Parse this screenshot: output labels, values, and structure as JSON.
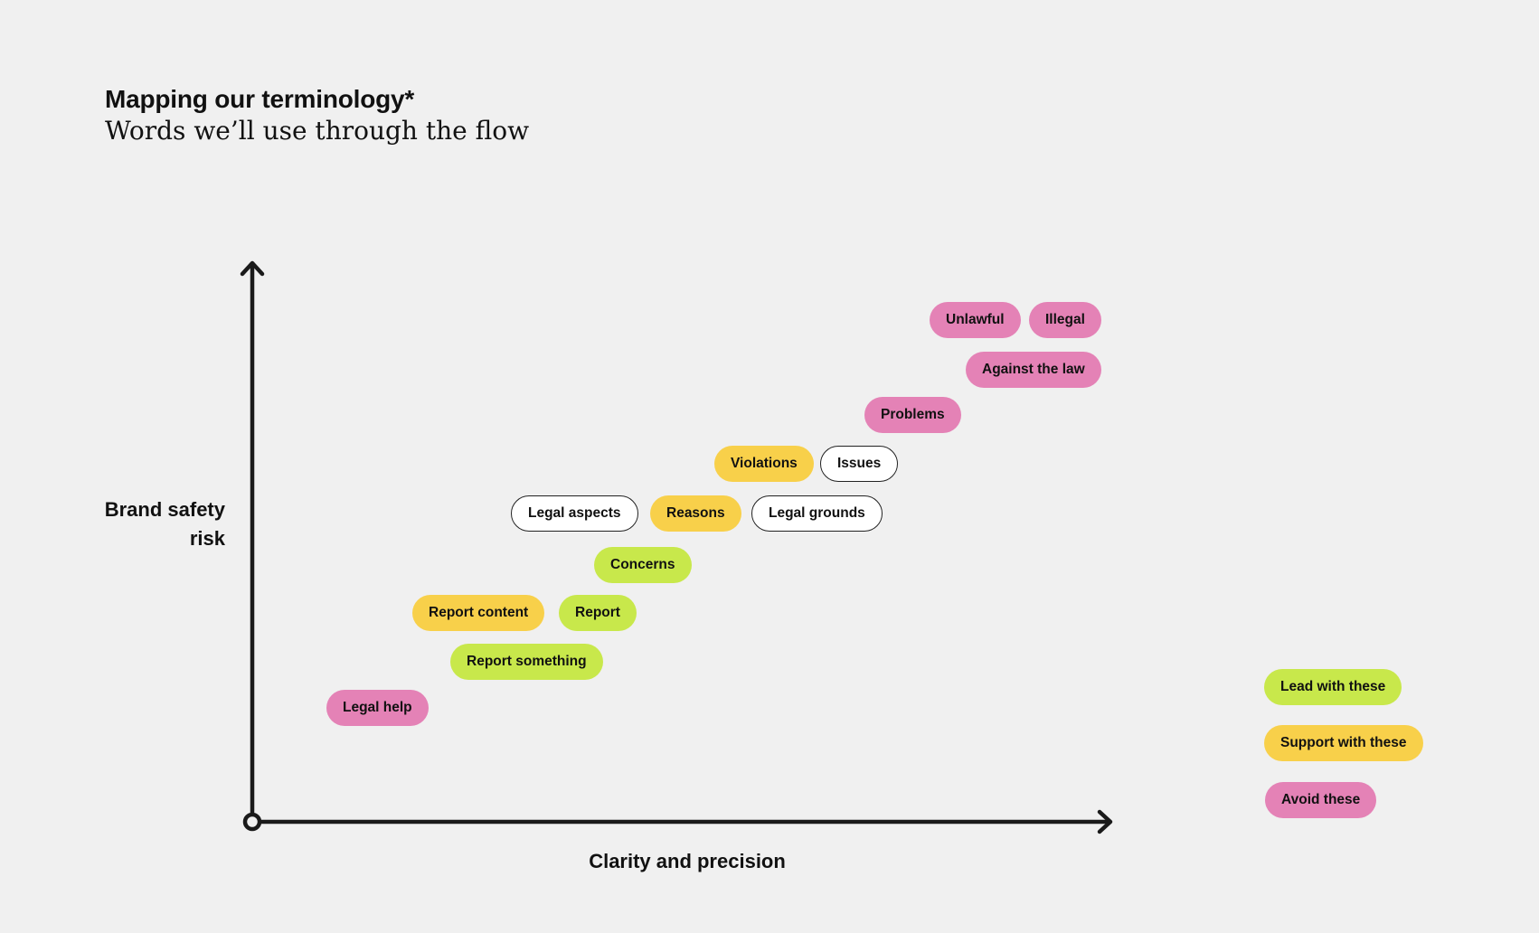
{
  "header": {
    "title": "Mapping our terminology*",
    "subtitle": "Words we’ll use through the flow"
  },
  "axes": {
    "y_label": "Brand safety\nrisk",
    "x_label": "Clarity and precision"
  },
  "categories": {
    "lead": {
      "label": "Lead with these",
      "color": "#c8e84b"
    },
    "support": {
      "label": "Support with these",
      "color": "#f8d04a"
    },
    "avoid": {
      "label": "Avoid these",
      "color": "#e482b6"
    },
    "neutral": {
      "color": "#ffffff"
    }
  },
  "terms": [
    {
      "label": "Unlawful",
      "category": "avoid"
    },
    {
      "label": "Illegal",
      "category": "avoid"
    },
    {
      "label": "Against the law",
      "category": "avoid"
    },
    {
      "label": "Problems",
      "category": "avoid"
    },
    {
      "label": "Violations",
      "category": "support"
    },
    {
      "label": "Issues",
      "category": "neutral"
    },
    {
      "label": "Legal aspects",
      "category": "neutral"
    },
    {
      "label": "Reasons",
      "category": "support"
    },
    {
      "label": "Legal grounds",
      "category": "neutral"
    },
    {
      "label": "Concerns",
      "category": "lead"
    },
    {
      "label": "Report content",
      "category": "support"
    },
    {
      "label": "Report",
      "category": "lead"
    },
    {
      "label": "Report something",
      "category": "lead"
    },
    {
      "label": "Legal help",
      "category": "avoid"
    }
  ],
  "legend": [
    {
      "label": "Lead with these",
      "category": "lead"
    },
    {
      "label": "Support with these",
      "category": "support"
    },
    {
      "label": "Avoid these",
      "category": "avoid"
    }
  ]
}
